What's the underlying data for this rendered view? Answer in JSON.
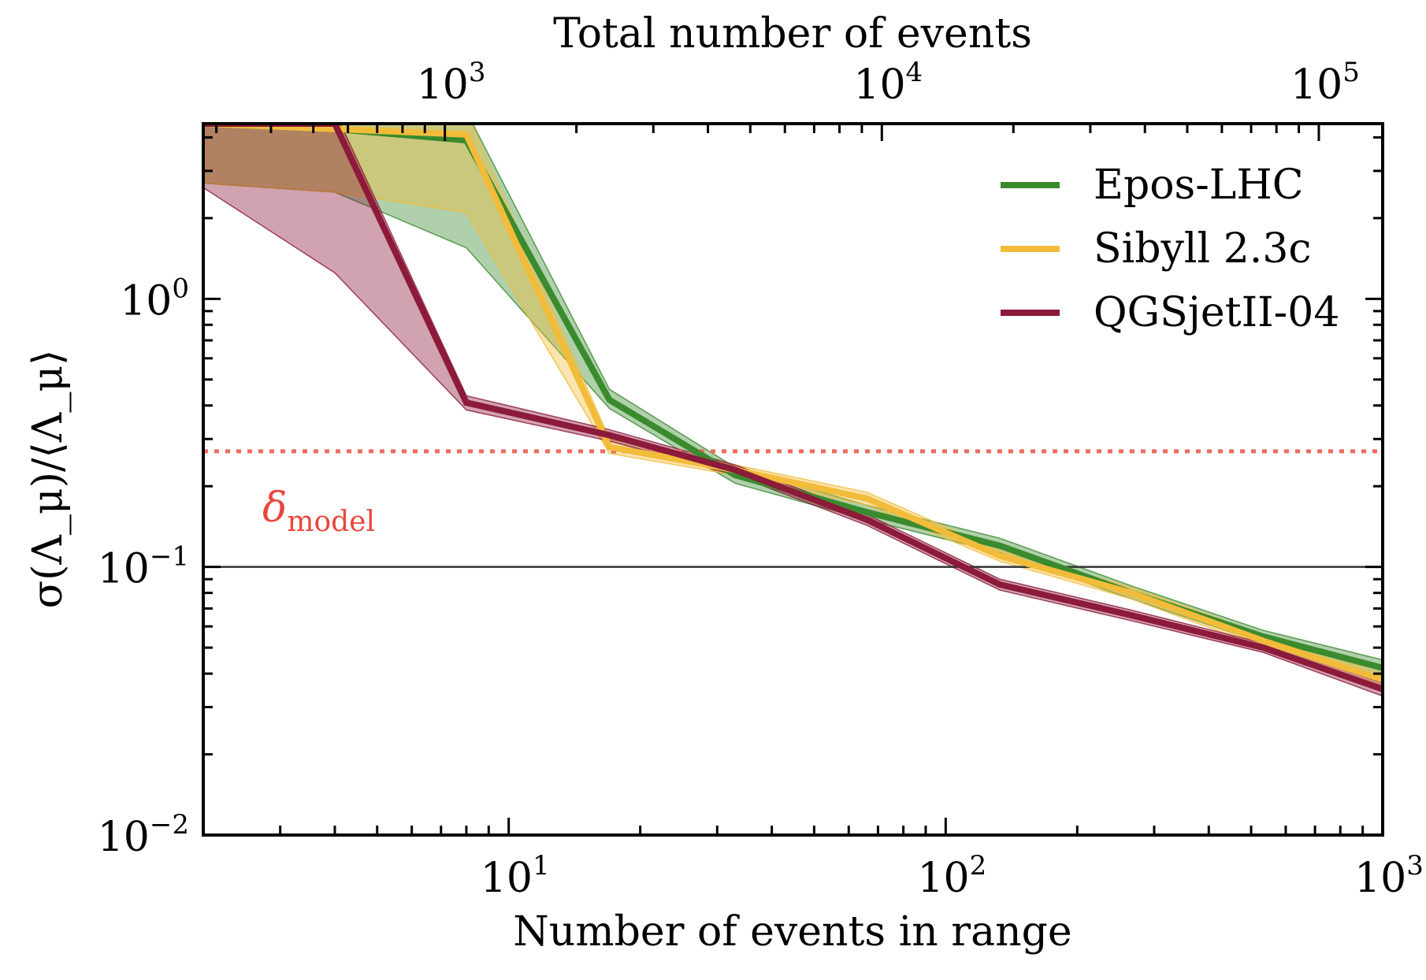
{
  "chart_data": {
    "type": "line",
    "xscale": "log",
    "yscale": "log",
    "xlim": [
      2,
      1000
    ],
    "ylim": [
      0.01,
      4.5
    ],
    "xlabel": "Number of events in range",
    "ylabel": "σ(Λ_μ)/⟨Λ_μ⟩",
    "top_xlabel": "Total number of events",
    "top_x_scale_factor": 140,
    "x_ticks": [
      {
        "value": 10,
        "base": "10",
        "exp": "1"
      },
      {
        "value": 100,
        "base": "10",
        "exp": "2"
      },
      {
        "value": 1000,
        "base": "10",
        "exp": "3"
      }
    ],
    "y_ticks": [
      {
        "value": 0.01,
        "base": "10",
        "exp": "−2"
      },
      {
        "value": 0.1,
        "base": "10",
        "exp": "−1"
      },
      {
        "value": 1,
        "base": "10",
        "exp": "0"
      }
    ],
    "top_x_ticks": [
      {
        "value": 1000,
        "base": "10",
        "exp": "3"
      },
      {
        "value": 10000,
        "base": "10",
        "exp": "4"
      },
      {
        "value": 100000,
        "base": "10",
        "exp": "5"
      }
    ],
    "legend_position": "top-right",
    "reference_lines": [
      {
        "y": 0.1,
        "color": "#333333",
        "style": "solid"
      },
      {
        "y": 0.27,
        "color": "#ef6b5f",
        "style": "dotted",
        "label": "δ",
        "label_sub": "model"
      }
    ],
    "series": [
      {
        "name": "Epos-LHC",
        "color": "#3a8a2e",
        "x": [
          2,
          4,
          8,
          17,
          33,
          66,
          133,
          266,
          533,
          1000
        ],
        "y": [
          4.5,
          4.3,
          3.9,
          0.42,
          0.22,
          0.16,
          0.12,
          0.08,
          0.055,
          0.042
        ],
        "lower": [
          2.7,
          2.5,
          1.55,
          0.39,
          0.205,
          0.15,
          0.113,
          0.076,
          0.052,
          0.039
        ],
        "upper": [
          5,
          5,
          5,
          0.46,
          0.235,
          0.17,
          0.128,
          0.085,
          0.058,
          0.045
        ]
      },
      {
        "name": "Sibyll 2.3c",
        "color": "#f2bc3a",
        "x": [
          2,
          4,
          8,
          17,
          33,
          66,
          133,
          266,
          533,
          1000
        ],
        "y": [
          4.5,
          4.3,
          4.1,
          0.28,
          0.23,
          0.18,
          0.11,
          0.08,
          0.053,
          0.038
        ],
        "lower": [
          2.7,
          2.5,
          2.1,
          0.265,
          0.22,
          0.17,
          0.105,
          0.076,
          0.05,
          0.036
        ],
        "upper": [
          5,
          5,
          5,
          0.3,
          0.24,
          0.19,
          0.115,
          0.084,
          0.056,
          0.04
        ]
      },
      {
        "name": "QGSjetII-04",
        "color": "#8c1a3a",
        "x": [
          2,
          4,
          8,
          17,
          33,
          66,
          133,
          266,
          533,
          1000
        ],
        "y": [
          4.5,
          4.5,
          0.41,
          0.31,
          0.23,
          0.15,
          0.086,
          0.066,
          0.05,
          0.035
        ],
        "lower": [
          2.6,
          1.25,
          0.385,
          0.295,
          0.22,
          0.143,
          0.082,
          0.063,
          0.048,
          0.033
        ],
        "upper": [
          5,
          5,
          0.435,
          0.325,
          0.24,
          0.157,
          0.09,
          0.069,
          0.052,
          0.037
        ]
      }
    ]
  }
}
